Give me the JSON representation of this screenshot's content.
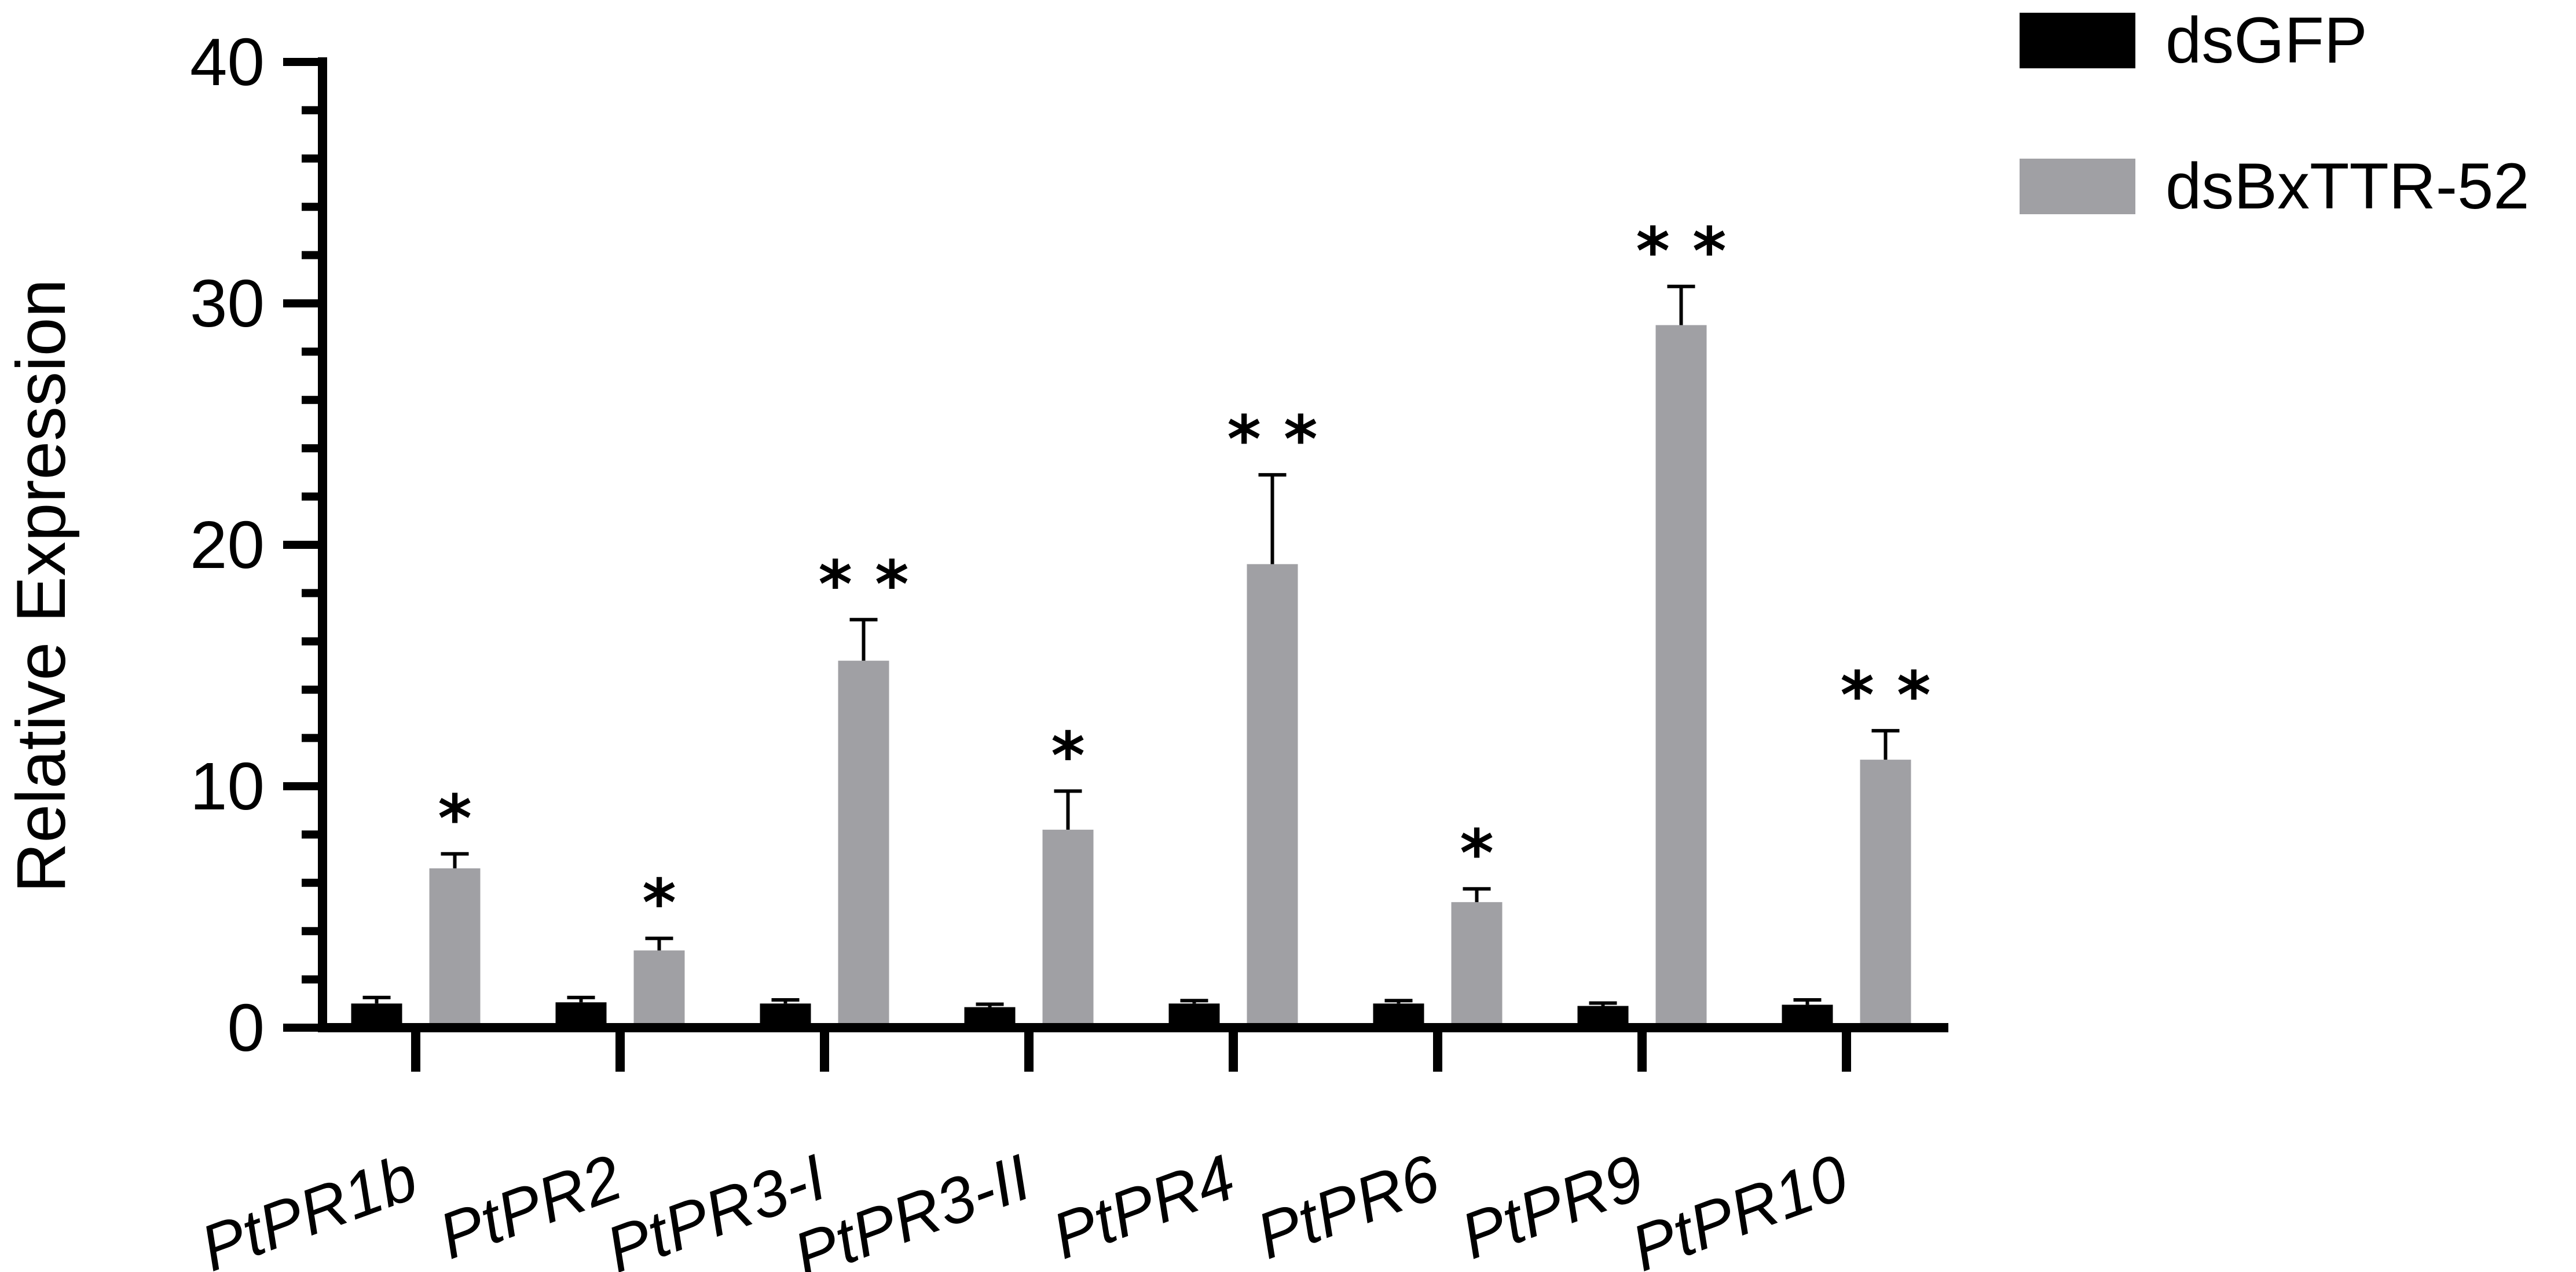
{
  "chart_data": {
    "type": "bar",
    "title": "",
    "xlabel": "",
    "ylabel": "Relative Expression",
    "ylim": [
      0,
      40
    ],
    "yticks": [
      0,
      10,
      20,
      30,
      40
    ],
    "grid": false,
    "legend_position": "top-right",
    "categories": [
      "PtPR1b",
      "PtPR2",
      "PtPR3-I",
      "PtPR3-II",
      "PtPR4",
      "PtPR6",
      "PtPR9",
      "PtPR10"
    ],
    "series": [
      {
        "name": "dsGFP",
        "color": "#000000",
        "values": [
          1.0,
          1.05,
          1.0,
          0.85,
          1.0,
          1.0,
          0.9,
          0.95
        ],
        "errors": [
          0.25,
          0.2,
          0.15,
          0.12,
          0.12,
          0.12,
          0.12,
          0.2
        ],
        "significance": [
          "",
          "",
          "",
          "",
          "",
          "",
          "",
          ""
        ]
      },
      {
        "name": "dsBxTTR-52",
        "color": "#a0a0a4",
        "values": [
          6.6,
          3.2,
          15.2,
          8.2,
          19.2,
          5.2,
          29.1,
          11.1
        ],
        "errors": [
          0.6,
          0.5,
          1.7,
          1.6,
          3.7,
          0.55,
          1.6,
          1.2
        ],
        "significance": [
          "*",
          "*",
          "**",
          "*",
          "**",
          "*",
          "**",
          "**"
        ]
      }
    ]
  }
}
